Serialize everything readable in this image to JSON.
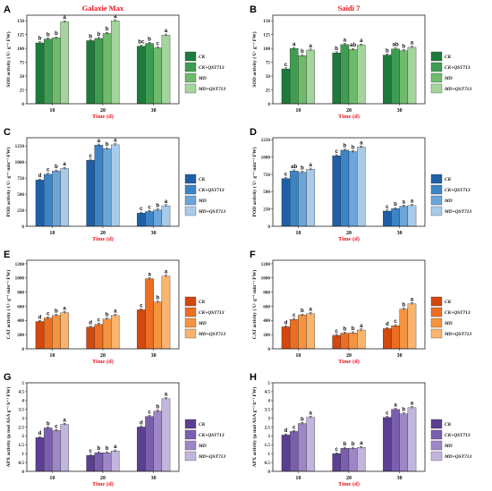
{
  "columns": [
    "Galaxie Max",
    "Saidi 7"
  ],
  "legend_entries": [
    "CK",
    "CK+QST713",
    "MD",
    "MD+QST713"
  ],
  "chart_data": [
    {
      "panel": "A",
      "type": "bar",
      "column_title": "Galaxie Max",
      "categories": [
        "10",
        "20",
        "30"
      ],
      "xlabel": "Time (d)",
      "ylabel": "SOD activity ( U· g⁻¹ FW)",
      "ylim": [
        0,
        160
      ],
      "yticks": [
        0,
        25,
        50,
        75,
        100,
        125,
        150
      ],
      "colors": [
        "#1d7a3c",
        "#3f9d52",
        "#6dbb6b",
        "#a4d59c"
      ],
      "series": [
        {
          "name": "CK",
          "values": [
            110,
            114,
            104
          ],
          "letters": [
            "b",
            "b",
            "bc"
          ]
        },
        {
          "name": "CK+QST713",
          "values": [
            117,
            118,
            109
          ],
          "letters": [
            "b",
            "b",
            "b"
          ]
        },
        {
          "name": "MD",
          "values": [
            119,
            127,
            101
          ],
          "letters": [
            "b",
            "b",
            "c"
          ]
        },
        {
          "name": "MD+QST713",
          "values": [
            148,
            150,
            124
          ],
          "letters": [
            "a",
            "a",
            "a"
          ]
        }
      ]
    },
    {
      "panel": "B",
      "type": "bar",
      "column_title": "Saidi 7",
      "categories": [
        "10",
        "20",
        "30"
      ],
      "xlabel": "Time (d)",
      "ylabel": "SOD activity ( U· g⁻¹ FW)",
      "ylim": [
        0,
        160
      ],
      "yticks": [
        0,
        25,
        50,
        75,
        100,
        125,
        150
      ],
      "colors": [
        "#1d7a3c",
        "#3f9d52",
        "#6dbb6b",
        "#a4d59c"
      ],
      "series": [
        {
          "name": "CK",
          "values": [
            63,
            92,
            88
          ],
          "letters": [
            "c",
            "b",
            "b"
          ]
        },
        {
          "name": "CK+QST713",
          "values": [
            100,
            107,
            99
          ],
          "letters": [
            "a",
            "a",
            "ab"
          ]
        },
        {
          "name": "MD",
          "values": [
            87,
            98,
            96
          ],
          "letters": [
            "b",
            "ab",
            "b"
          ]
        },
        {
          "name": "MD+QST713",
          "values": [
            97,
            106,
            102
          ],
          "letters": [
            "a",
            "a",
            "a"
          ]
        }
      ]
    },
    {
      "panel": "C",
      "type": "bar",
      "column_title": "",
      "categories": [
        "10",
        "20",
        "30"
      ],
      "xlabel": "Time (d)",
      "ylabel": "POD activity ( U· g⁻¹ min⁻¹ FW)",
      "ylim": [
        0,
        1380
      ],
      "yticks": [
        0,
        250,
        500,
        750,
        1000,
        1250
      ],
      "colors": [
        "#1f5fa8",
        "#3d84c6",
        "#6aa6da",
        "#a9cbea"
      ],
      "series": [
        {
          "name": "CK",
          "values": [
            720,
            1030,
            205
          ],
          "letters": [
            "d",
            "c",
            "c"
          ]
        },
        {
          "name": "CK+QST713",
          "values": [
            810,
            1265,
            230
          ],
          "letters": [
            "c",
            "a",
            "c"
          ]
        },
        {
          "name": "MD",
          "values": [
            860,
            1210,
            255
          ],
          "letters": [
            "b",
            "b",
            "b"
          ]
        },
        {
          "name": "MD+QST713",
          "values": [
            900,
            1270,
            320
          ],
          "letters": [
            "a",
            "a",
            "a"
          ]
        }
      ]
    },
    {
      "panel": "D",
      "type": "bar",
      "column_title": "",
      "categories": [
        "10",
        "20",
        "30"
      ],
      "xlabel": "Time (d)",
      "ylabel": "POD activity ( U· g⁻¹ min⁻¹ FW)",
      "ylim": [
        0,
        1280
      ],
      "yticks": [
        0,
        250,
        500,
        750,
        1000,
        1250
      ],
      "colors": [
        "#1f5fa8",
        "#3d84c6",
        "#6aa6da",
        "#a9cbea"
      ],
      "series": [
        {
          "name": "CK",
          "values": [
            690,
            1020,
            220
          ],
          "letters": [
            "c",
            "c",
            "c"
          ]
        },
        {
          "name": "CK+QST713",
          "values": [
            800,
            1100,
            255
          ],
          "letters": [
            "ab",
            "b",
            "b"
          ]
        },
        {
          "name": "MD",
          "values": [
            780,
            1080,
            290
          ],
          "letters": [
            "b",
            "b",
            "a"
          ]
        },
        {
          "name": "MD+QST713",
          "values": [
            825,
            1145,
            300
          ],
          "letters": [
            "a",
            "a",
            "a"
          ]
        }
      ]
    },
    {
      "panel": "E",
      "type": "bar",
      "column_title": "",
      "categories": [
        "10",
        "20",
        "30"
      ],
      "xlabel": "Time (d)",
      "ylabel": "CAT activity ( U· g⁻¹ min⁻¹ FW)",
      "ylim": [
        0,
        1250
      ],
      "yticks": [
        0,
        200,
        400,
        600,
        800,
        1000,
        1200
      ],
      "colors": [
        "#d3480e",
        "#ec6e22",
        "#f5933f",
        "#f9b46e"
      ],
      "series": [
        {
          "name": "CK",
          "values": [
            385,
            305,
            550
          ],
          "letters": [
            "d",
            "d",
            "c"
          ]
        },
        {
          "name": "CK+QST713",
          "values": [
            435,
            345,
            990
          ],
          "letters": [
            "c",
            "c",
            "a"
          ]
        },
        {
          "name": "MD",
          "values": [
            470,
            420,
            660
          ],
          "letters": [
            "b",
            "b",
            "b"
          ]
        },
        {
          "name": "MD+QST713",
          "values": [
            510,
            470,
            1025
          ],
          "letters": [
            "a",
            "a",
            "a"
          ]
        }
      ]
    },
    {
      "panel": "F",
      "type": "bar",
      "column_title": "",
      "categories": [
        "10",
        "20",
        "30"
      ],
      "xlabel": "Time (d)",
      "ylabel": "CAT activity ( U· g⁻¹ min⁻¹ FW)",
      "ylim": [
        0,
        1250
      ],
      "yticks": [
        0,
        200,
        400,
        600,
        800,
        1000,
        1200
      ],
      "colors": [
        "#d3480e",
        "#ec6e22",
        "#f5933f",
        "#f9b46e"
      ],
      "series": [
        {
          "name": "CK",
          "values": [
            310,
            190,
            285
          ],
          "letters": [
            "d",
            "c",
            "d"
          ]
        },
        {
          "name": "CK+QST713",
          "values": [
            415,
            220,
            325
          ],
          "letters": [
            "c",
            "b",
            "c"
          ]
        },
        {
          "name": "MD",
          "values": [
            475,
            225,
            560
          ],
          "letters": [
            "b",
            "b",
            "b"
          ]
        },
        {
          "name": "MD+QST713",
          "values": [
            495,
            265,
            635
          ],
          "letters": [
            "a",
            "a",
            "a"
          ]
        }
      ]
    },
    {
      "panel": "G",
      "type": "bar",
      "column_title": "",
      "categories": [
        "10",
        "20",
        "30"
      ],
      "xlabel": "Time (d)",
      "ylabel": "APX activity (μ mol ASA g⁻¹ h⁻¹ FW)",
      "ylim": [
        0,
        5
      ],
      "yticks": [
        0,
        0.5,
        1,
        1.5,
        2,
        2.5,
        3,
        3.5,
        4,
        4.5,
        5
      ],
      "colors": [
        "#5b3f92",
        "#7b5fae",
        "#9d87c6",
        "#c2b6de"
      ],
      "series": [
        {
          "name": "CK",
          "values": [
            1.9,
            0.9,
            2.5
          ],
          "letters": [
            "d",
            "c",
            "d"
          ]
        },
        {
          "name": "CK+QST713",
          "values": [
            2.45,
            1.05,
            3.1
          ],
          "letters": [
            "b",
            "b",
            "c"
          ]
        },
        {
          "name": "MD",
          "values": [
            2.3,
            1.05,
            3.4
          ],
          "letters": [
            "c",
            "b",
            "b"
          ]
        },
        {
          "name": "MD+QST713",
          "values": [
            2.65,
            1.15,
            4.1
          ],
          "letters": [
            "a",
            "a",
            "a"
          ]
        }
      ]
    },
    {
      "panel": "H",
      "type": "bar",
      "column_title": "",
      "categories": [
        "10",
        "20",
        "30"
      ],
      "xlabel": "Time (d)",
      "ylabel": "APX activity (μ mol ASA g⁻¹ h⁻¹ FW)",
      "ylim": [
        0,
        5
      ],
      "yticks": [
        0,
        0.5,
        1,
        1.5,
        2,
        2.5,
        3,
        3.5,
        4,
        4.5,
        5
      ],
      "colors": [
        "#5b3f92",
        "#7b5fae",
        "#9d87c6",
        "#c2b6de"
      ],
      "series": [
        {
          "name": "CK",
          "values": [
            2.05,
            1.0,
            3.05
          ],
          "letters": [
            "d",
            "c",
            "c"
          ]
        },
        {
          "name": "CK+QST713",
          "values": [
            2.25,
            1.3,
            3.5
          ],
          "letters": [
            "c",
            "b",
            "a"
          ]
        },
        {
          "name": "MD",
          "values": [
            2.7,
            1.3,
            3.25
          ],
          "letters": [
            "b",
            "b",
            "b"
          ]
        },
        {
          "name": "MD+QST713",
          "values": [
            3.05,
            1.35,
            3.6
          ],
          "letters": [
            "a",
            "a",
            "a"
          ]
        }
      ]
    }
  ]
}
